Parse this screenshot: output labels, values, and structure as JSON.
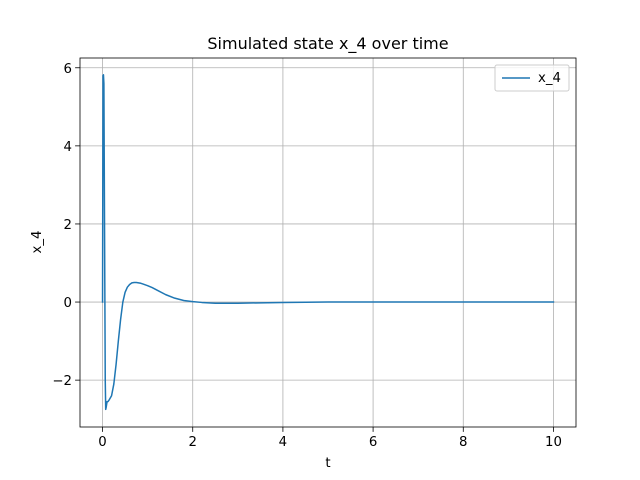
{
  "chart_data": {
    "type": "line",
    "title": "Simulated state x_4 over time",
    "xlabel": "t",
    "ylabel": "x_4",
    "xlim": [
      -0.5,
      10.5
    ],
    "ylim": [
      -3.2,
      6.25
    ],
    "xticks": [
      0,
      2,
      4,
      6,
      8,
      10
    ],
    "xtick_labels": [
      "0",
      "2",
      "4",
      "6",
      "8",
      "10"
    ],
    "yticks": [
      -2,
      0,
      2,
      4,
      6
    ],
    "ytick_labels": [
      "−2",
      "0",
      "2",
      "4",
      "6"
    ],
    "grid": true,
    "legend_position": "top-right",
    "series": [
      {
        "name": "x_4",
        "color": "#1f77b4",
        "x": [
          0,
          0.01,
          0.02,
          0.03,
          0.04,
          0.05,
          0.06,
          0.07,
          0.08,
          0.1,
          0.12,
          0.15,
          0.2,
          0.25,
          0.3,
          0.35,
          0.4,
          0.45,
          0.5,
          0.55,
          0.6,
          0.65,
          0.7,
          0.75,
          0.8,
          0.85,
          0.9,
          1.0,
          1.1,
          1.2,
          1.4,
          1.6,
          1.8,
          2.0,
          2.2,
          2.5,
          3.0,
          3.5,
          4.0,
          5.0,
          6.0,
          7.0,
          8.0,
          9.0,
          10.0
        ],
        "y": [
          0,
          5.8,
          5.82,
          5.6,
          3.0,
          0.5,
          -2.0,
          -2.75,
          -2.7,
          -2.55,
          -2.55,
          -2.5,
          -2.4,
          -2.1,
          -1.6,
          -1.0,
          -0.45,
          0.0,
          0.25,
          0.38,
          0.45,
          0.49,
          0.5,
          0.5,
          0.49,
          0.48,
          0.46,
          0.42,
          0.37,
          0.31,
          0.19,
          0.1,
          0.04,
          0.01,
          -0.01,
          -0.03,
          -0.03,
          -0.02,
          -0.01,
          0.0,
          0.0,
          0.0,
          0.0,
          0.0,
          0.0
        ]
      }
    ]
  }
}
